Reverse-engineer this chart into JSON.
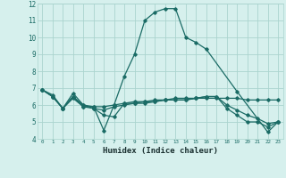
{
  "title": "",
  "xlabel": "Humidex (Indice chaleur)",
  "ylabel": "",
  "xlim": [
    -0.5,
    23.5
  ],
  "ylim": [
    4,
    12
  ],
  "yticks": [
    4,
    5,
    6,
    7,
    8,
    9,
    10,
    11,
    12
  ],
  "xticks": [
    0,
    1,
    2,
    3,
    4,
    5,
    6,
    7,
    8,
    9,
    10,
    11,
    12,
    13,
    14,
    15,
    16,
    17,
    18,
    19,
    20,
    21,
    22,
    23
  ],
  "xtick_labels": [
    "0",
    "1",
    "2",
    "3",
    "4",
    "5",
    "6",
    "7",
    "8",
    "9",
    "10",
    "11",
    "12",
    "13",
    "14",
    "15",
    "16",
    "17",
    "18",
    "19",
    "20",
    "21",
    "22",
    "23"
  ],
  "background_color": "#d6f0ed",
  "grid_color": "#aad4ce",
  "line_color": "#1a6b65",
  "lines": [
    {
      "x": [
        0,
        1,
        2,
        3,
        4,
        5,
        6,
        7,
        8,
        9,
        10,
        11,
        12,
        13,
        14,
        15,
        16,
        19,
        22,
        23
      ],
      "y": [
        6.9,
        6.6,
        5.8,
        6.7,
        6.0,
        5.9,
        4.5,
        6.0,
        7.7,
        9.0,
        11.0,
        11.5,
        11.7,
        11.7,
        10.0,
        9.7,
        9.3,
        6.8,
        4.4,
        5.0
      ]
    },
    {
      "x": [
        0,
        1,
        2,
        3,
        4,
        5,
        6,
        7,
        8,
        9,
        10,
        11,
        12,
        13,
        14,
        15,
        16,
        17,
        18,
        19,
        20,
        21,
        22,
        23
      ],
      "y": [
        6.9,
        6.5,
        5.8,
        6.4,
        5.9,
        5.9,
        5.9,
        6.0,
        6.1,
        6.2,
        6.2,
        6.3,
        6.3,
        6.3,
        6.3,
        6.4,
        6.4,
        6.4,
        6.4,
        6.4,
        6.3,
        6.3,
        6.3,
        6.3
      ]
    },
    {
      "x": [
        0,
        1,
        2,
        3,
        4,
        5,
        6,
        7,
        8,
        9,
        10,
        11,
        12,
        13,
        14,
        15,
        16,
        17,
        18,
        19,
        20,
        21,
        22,
        23
      ],
      "y": [
        6.9,
        6.5,
        5.8,
        6.5,
        5.9,
        5.8,
        5.4,
        5.3,
        6.1,
        6.1,
        6.2,
        6.2,
        6.3,
        6.4,
        6.4,
        6.4,
        6.5,
        6.5,
        5.8,
        5.4,
        5.0,
        5.0,
        4.7,
        5.0
      ]
    },
    {
      "x": [
        0,
        1,
        2,
        3,
        4,
        5,
        6,
        7,
        8,
        9,
        10,
        11,
        12,
        13,
        14,
        15,
        16,
        17,
        18,
        19,
        20,
        21,
        22,
        23
      ],
      "y": [
        6.9,
        6.5,
        5.8,
        6.5,
        6.0,
        5.8,
        5.7,
        5.9,
        6.0,
        6.1,
        6.1,
        6.2,
        6.3,
        6.3,
        6.3,
        6.4,
        6.5,
        6.5,
        6.0,
        5.7,
        5.4,
        5.2,
        4.9,
        5.0
      ]
    }
  ]
}
